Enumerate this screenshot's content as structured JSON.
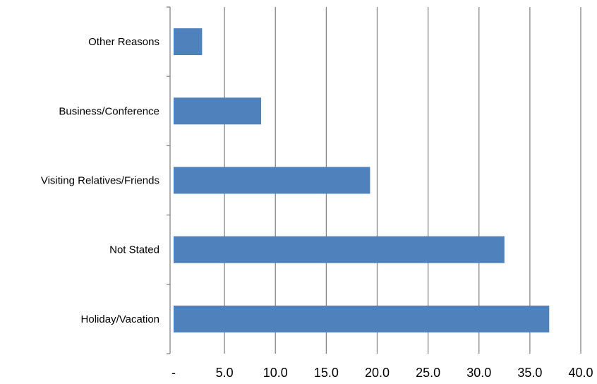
{
  "chart_data": {
    "type": "bar",
    "orientation": "horizontal",
    "categories": [
      "Holiday/Vacation",
      "Not Stated",
      "Visiting Relatives/Friends",
      "Business/Conference",
      "Other Reasons"
    ],
    "values": [
      36.9,
      32.5,
      19.3,
      8.6,
      2.8
    ],
    "x_ticks": [
      "-",
      "5.0",
      "10.0",
      "15.0",
      "20.0",
      "25.0",
      "30.0",
      "35.0",
      "40.0"
    ],
    "xlim": [
      0,
      40
    ],
    "xlabel": "",
    "ylabel": "",
    "title": "",
    "grid": "vertical",
    "legend": "none",
    "colors": {
      "bar": "#4f81bd",
      "grid": "#868686",
      "axis": "#868686"
    }
  }
}
